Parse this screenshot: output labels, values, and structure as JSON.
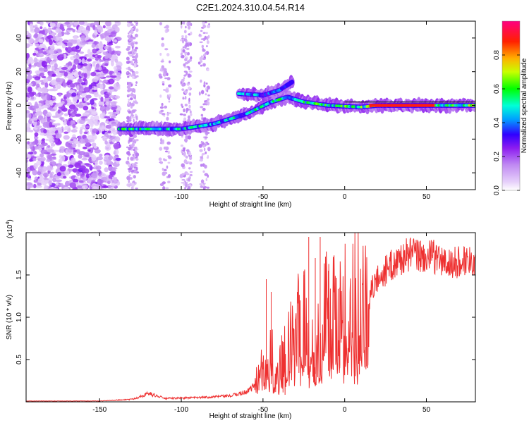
{
  "title": "C2E1.2024.310.04.54.R14",
  "chart_data": [
    {
      "type": "heatmap",
      "xlabel": "Height of straight line (km)",
      "ylabel": "Frequency (Hz)",
      "xlim": [
        -195,
        80
      ],
      "ylim": [
        -50,
        50
      ],
      "xticks": [
        -150,
        -100,
        -50,
        0,
        50
      ],
      "yticks": [
        -40,
        -20,
        0,
        20,
        40
      ],
      "colorbar": {
        "label": "Normalized spectral amplitude",
        "range": [
          0,
          1
        ],
        "ticks": [
          "0.0",
          "0.2",
          "0.4",
          "0.6",
          "0.8"
        ],
        "tick_values": [
          0,
          0.2,
          0.4,
          0.6,
          0.8
        ],
        "colors": [
          "#ffffff",
          "#c8a0f0",
          "#9028f0",
          "#0000ff",
          "#00c8ff",
          "#00ff00",
          "#ffff00",
          "#ff8000",
          "#ff0000",
          "#ff0080"
        ]
      },
      "features": [
        {
          "name": "main trace",
          "points": [
            [
              -138,
              -14
            ],
            [
              -120,
              -14
            ],
            [
              -100,
              -14
            ],
            [
              -80,
              -11
            ],
            [
              -60,
              -5
            ],
            [
              -45,
              2
            ],
            [
              -35,
              5
            ],
            [
              -25,
              2
            ],
            [
              -10,
              0
            ],
            [
              10,
              -1
            ],
            [
              20,
              0
            ],
            [
              80,
              0
            ]
          ]
        },
        {
          "name": "upper branch",
          "points": [
            [
              -65,
              7
            ],
            [
              -50,
              6
            ],
            [
              -40,
              9
            ],
            [
              -32,
              14
            ]
          ]
        }
      ]
    },
    {
      "type": "line",
      "xlabel": "Height of straight line (km)",
      "ylabel": "SNR (10 * v/v)",
      "scale_label": "(x10",
      "scale_exponent": "4",
      "scale_suffix": ")",
      "xlim": [
        -195,
        80
      ],
      "ylim": [
        0,
        2.0
      ],
      "xticks": [
        -150,
        -100,
        -50,
        0,
        50
      ],
      "yticks": [
        0.5,
        1.0,
        1.5
      ],
      "ytick_labels": [
        "0.5",
        "1.0",
        "1.5"
      ],
      "color": "#ee3030",
      "envelope": [
        [
          -195,
          0.01
        ],
        [
          -150,
          0.01
        ],
        [
          -130,
          0.03
        ],
        [
          -120,
          0.1
        ],
        [
          -110,
          0.04
        ],
        [
          -90,
          0.05
        ],
        [
          -70,
          0.07
        ],
        [
          -60,
          0.12
        ],
        [
          -55,
          0.2
        ],
        [
          -50,
          0.4
        ],
        [
          -48,
          0.8
        ],
        [
          -45,
          0.6
        ],
        [
          -42,
          0.3
        ],
        [
          -38,
          0.5
        ],
        [
          -35,
          0.6
        ],
        [
          -30,
          0.85
        ],
        [
          -25,
          1.0
        ],
        [
          -22,
          0.8
        ],
        [
          -20,
          0.9
        ],
        [
          -15,
          1.0
        ],
        [
          -10,
          1.05
        ],
        [
          -5,
          1.1
        ],
        [
          0,
          1.2
        ],
        [
          5,
          1.2
        ],
        [
          10,
          1.3
        ],
        [
          13,
          1.1
        ],
        [
          18,
          1.4
        ],
        [
          22,
          1.5
        ],
        [
          28,
          1.6
        ],
        [
          35,
          1.7
        ],
        [
          40,
          1.75
        ],
        [
          45,
          1.73
        ],
        [
          50,
          1.7
        ],
        [
          55,
          1.72
        ],
        [
          60,
          1.65
        ],
        [
          65,
          1.62
        ],
        [
          70,
          1.66
        ],
        [
          75,
          1.68
        ],
        [
          80,
          1.7
        ]
      ],
      "spikes": [
        [
          -48,
          1.45
        ],
        [
          -45,
          1.3
        ],
        [
          -25,
          1.5
        ],
        [
          -22,
          1.95
        ],
        [
          -18,
          1.7
        ],
        [
          -15,
          1.95
        ],
        [
          -10,
          1.55
        ],
        [
          -7,
          1.5
        ],
        [
          -3,
          1.35
        ],
        [
          13,
          0.65
        ]
      ]
    }
  ]
}
